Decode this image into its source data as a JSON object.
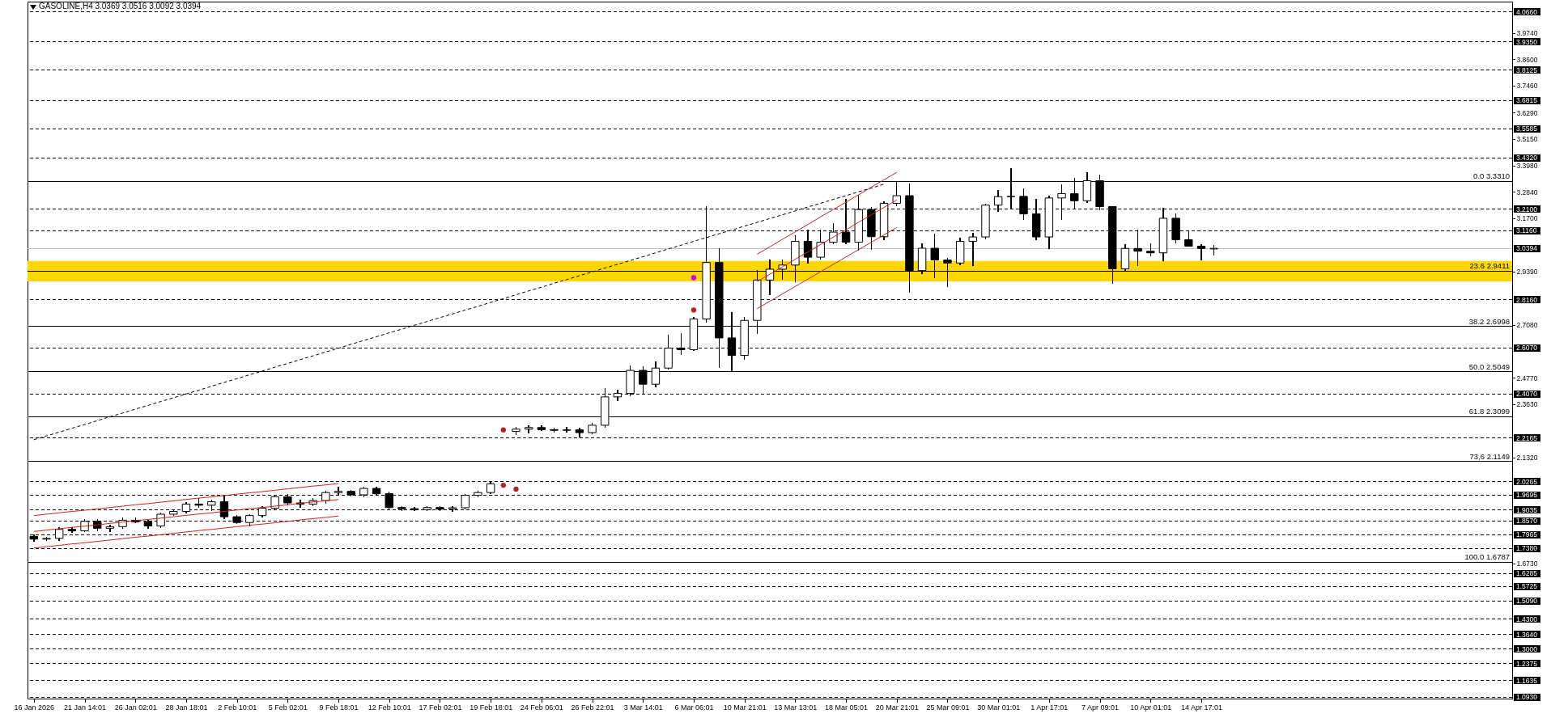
{
  "chart_data": {
    "type": "candlestick",
    "title": "GASOLINE,H4 3.0369 3.0516 3.0092 3.0394",
    "color": "#000000",
    "categories": [
      "16 Jan 2026",
      null,
      null,
      null,
      "21 Jan 14:01",
      null,
      null,
      null,
      "26 Jan 02:01",
      null,
      null,
      null,
      "28 Jan 18:01",
      null,
      null,
      null,
      "2 Feb 10:01",
      null,
      null,
      null,
      "5 Feb 02:01",
      null,
      null,
      null,
      "9 Feb 18:01",
      null,
      null,
      null,
      "12 Feb 10:01",
      null,
      null,
      null,
      "17 Feb 02:01",
      null,
      null,
      null,
      "19 Feb 18:01",
      null,
      null,
      null,
      "24 Feb 06:01",
      null,
      null,
      null,
      "26 Feb 22:01",
      null,
      null,
      null,
      "3 Mar 14:01",
      null,
      null,
      null,
      "6 Mar 06:01",
      null,
      null,
      null,
      "10 Mar 21:01",
      null,
      null,
      null,
      "13 Mar 13:01",
      null,
      null,
      null,
      "18 Mar 05:01",
      null,
      null,
      null,
      "20 Mar 21:01",
      null,
      null,
      null,
      "25 Mar 09:01",
      null,
      null,
      null,
      "30 Mar 01:01",
      null,
      null,
      null,
      "1 Apr 17:01",
      null,
      null,
      null,
      "7 Apr 09:01",
      null,
      null,
      null,
      "10 Apr 01:01",
      null,
      null,
      null,
      "14 Apr 17:01",
      null,
      null,
      null,
      null,
      null,
      null,
      null,
      null,
      null,
      null,
      null,
      null,
      null,
      null,
      null,
      null,
      null,
      null,
      null,
      null,
      null,
      null,
      null,
      null
    ],
    "ohlc": [
      [
        1.79,
        1.797,
        1.77,
        1.778
      ],
      [
        1.778,
        1.786,
        1.772,
        1.781
      ],
      [
        1.781,
        1.826,
        1.772,
        1.82
      ],
      [
        1.82,
        1.828,
        1.806,
        1.814
      ],
      [
        1.814,
        1.862,
        1.81,
        1.855
      ],
      [
        1.855,
        1.862,
        1.815,
        1.825
      ],
      [
        1.825,
        1.838,
        1.812,
        1.832
      ],
      [
        1.832,
        1.868,
        1.825,
        1.86
      ],
      [
        1.86,
        1.87,
        1.848,
        1.852
      ],
      [
        1.852,
        1.858,
        1.826,
        1.835
      ],
      [
        1.835,
        1.892,
        1.83,
        1.886
      ],
      [
        1.886,
        1.905,
        1.88,
        1.898
      ],
      [
        1.898,
        1.935,
        1.893,
        1.93
      ],
      [
        1.93,
        1.955,
        1.915,
        1.925
      ],
      [
        1.925,
        1.945,
        1.903,
        1.94
      ],
      [
        1.94,
        1.968,
        1.868,
        1.875
      ],
      [
        1.875,
        1.88,
        1.845,
        1.85
      ],
      [
        1.85,
        1.885,
        1.836,
        1.88
      ],
      [
        1.88,
        1.92,
        1.875,
        1.912
      ],
      [
        1.912,
        1.968,
        1.905,
        1.962
      ],
      [
        1.962,
        1.97,
        1.928,
        1.935
      ],
      [
        1.935,
        1.948,
        1.915,
        1.93
      ],
      [
        1.93,
        1.952,
        1.925,
        1.945
      ],
      [
        1.945,
        1.985,
        1.935,
        1.98
      ],
      [
        1.98,
        2.004,
        1.972,
        1.985
      ],
      [
        1.985,
        1.99,
        1.965,
        1.97
      ],
      [
        1.97,
        2.004,
        1.962,
        1.998
      ],
      [
        1.998,
        2.002,
        1.97,
        1.975
      ],
      [
        1.975,
        1.98,
        1.91,
        1.915
      ],
      [
        1.915,
        1.918,
        1.903,
        1.91
      ],
      [
        1.91,
        1.915,
        1.901,
        1.906
      ],
      [
        1.906,
        1.92,
        1.902,
        1.915
      ],
      [
        1.915,
        1.918,
        1.903,
        1.908
      ],
      [
        1.908,
        1.918,
        1.898,
        1.914
      ],
      [
        1.914,
        1.972,
        1.91,
        1.968
      ],
      [
        1.968,
        1.985,
        1.962,
        1.98
      ],
      [
        1.98,
        2.025,
        1.975,
        2.018
      ],
      null,
      [
        2.245,
        2.262,
        2.232,
        2.255
      ],
      [
        2.255,
        2.27,
        2.24,
        2.262
      ],
      [
        2.262,
        2.268,
        2.248,
        2.253
      ],
      [
        2.253,
        2.26,
        2.242,
        2.25
      ],
      [
        2.25,
        2.262,
        2.244,
        2.252
      ],
      [
        2.252,
        2.258,
        2.222,
        2.24
      ],
      [
        2.24,
        2.28,
        2.236,
        2.272
      ],
      [
        2.272,
        2.43,
        2.265,
        2.395
      ],
      [
        2.395,
        2.425,
        2.38,
        2.41
      ],
      [
        2.41,
        2.529,
        2.4,
        2.51
      ],
      [
        2.51,
        2.525,
        2.41,
        2.45
      ],
      [
        2.45,
        2.545,
        2.44,
        2.52
      ],
      [
        2.52,
        2.663,
        2.515,
        2.607
      ],
      [
        2.607,
        2.668,
        2.581,
        2.6
      ],
      [
        2.6,
        2.74,
        2.596,
        2.733
      ],
      [
        2.733,
        3.22,
        2.72,
        2.978
      ],
      [
        2.978,
        3.037,
        2.523,
        2.651
      ],
      [
        2.651,
        2.762,
        2.505,
        2.575
      ],
      [
        2.575,
        2.738,
        2.56,
        2.727
      ],
      [
        2.727,
        2.943,
        2.67,
        2.902
      ],
      [
        2.902,
        2.99,
        2.838,
        2.949
      ],
      [
        2.949,
        2.99,
        2.905,
        2.967
      ],
      [
        2.967,
        3.095,
        2.896,
        3.07
      ],
      [
        3.07,
        3.118,
        2.975,
        3.001
      ],
      [
        3.001,
        3.118,
        2.995,
        3.066
      ],
      [
        3.066,
        3.148,
        3.06,
        3.11
      ],
      [
        3.11,
        3.253,
        3.06,
        3.066
      ],
      [
        3.066,
        3.27,
        3.033,
        3.208
      ],
      [
        3.208,
        3.218,
        3.037,
        3.09
      ],
      [
        3.09,
        3.24,
        3.078,
        3.235
      ],
      [
        3.235,
        3.329,
        3.225,
        3.268
      ],
      [
        3.268,
        3.317,
        2.85,
        2.943
      ],
      [
        2.943,
        3.058,
        2.93,
        3.04
      ],
      [
        3.04,
        3.102,
        2.914,
        2.989
      ],
      [
        2.989,
        2.995,
        2.874,
        2.976
      ],
      [
        2.976,
        3.083,
        2.97,
        3.07
      ],
      [
        3.07,
        3.104,
        2.966,
        3.089
      ],
      [
        3.089,
        3.229,
        3.08,
        3.227
      ],
      [
        3.227,
        3.29,
        3.202,
        3.264
      ],
      [
        3.264,
        3.384,
        3.214,
        3.265
      ],
      [
        3.265,
        3.296,
        3.167,
        3.189
      ],
      [
        3.189,
        3.252,
        3.077,
        3.089
      ],
      [
        3.089,
        3.265,
        3.039,
        3.258
      ],
      [
        3.258,
        3.315,
        3.167,
        3.277
      ],
      [
        3.277,
        3.342,
        3.214,
        3.246
      ],
      [
        3.246,
        3.367,
        3.24,
        3.333
      ],
      [
        3.333,
        3.357,
        3.208,
        3.221
      ],
      [
        3.221,
        3.221,
        2.889,
        2.951
      ],
      [
        2.951,
        3.054,
        2.939,
        3.039
      ],
      [
        3.039,
        3.117,
        2.966,
        3.027
      ],
      [
        3.027,
        3.058,
        3.008,
        3.02
      ],
      [
        3.02,
        3.212,
        2.986,
        3.17
      ],
      [
        3.17,
        3.189,
        3.064,
        3.077
      ],
      [
        3.077,
        3.112,
        3.049,
        3.049
      ],
      [
        3.049,
        3.054,
        2.991,
        3.039
      ],
      [
        3.0369,
        3.0516,
        3.0092,
        3.0394
      ],
      null,
      null,
      null,
      null,
      null,
      null,
      null,
      null,
      null,
      null,
      null,
      null,
      null,
      null,
      null,
      null,
      null,
      null,
      null,
      null,
      null,
      null,
      null
    ],
    "ylim": [
      1.086,
      4.11
    ],
    "yticks": [
      {
        "value": 3.974,
        "label": "3.9740"
      },
      {
        "value": 3.86,
        "label": "3.8600"
      },
      {
        "value": 3.746,
        "label": "3.7460"
      },
      {
        "value": 3.629,
        "label": "3.6290"
      },
      {
        "value": 3.515,
        "label": "3.5150"
      },
      {
        "value": 3.398,
        "label": "3.3980"
      },
      {
        "value": 3.284,
        "label": "3.2840"
      },
      {
        "value": 3.17,
        "label": "3.1700"
      },
      {
        "value": 2.939,
        "label": "2.9390"
      },
      {
        "value": 2.708,
        "label": "2.7080"
      },
      {
        "value": 2.477,
        "label": "2.4770"
      },
      {
        "value": 2.363,
        "label": "2.3630"
      },
      {
        "value": 2.132,
        "label": "2.1320"
      },
      {
        "value": 1.673,
        "label": "1.6730"
      }
    ],
    "bands": [
      {
        "axis": "y",
        "from": 2.896,
        "to": 2.985,
        "color": "#ffd700"
      }
    ],
    "series": [
      {
        "type": "line",
        "color": "#cc2222",
        "line_style": "solid",
        "values": [
          1.88,
          1.886,
          1.892,
          1.898,
          1.903,
          1.909,
          1.915,
          1.921,
          1.927,
          1.932,
          1.938,
          1.944,
          1.95,
          1.956,
          1.961,
          1.967,
          1.973,
          1.979,
          1.984,
          1.99,
          1.996,
          2.002,
          2.008,
          2.013,
          2.019,
          null,
          null,
          null,
          null,
          null,
          null,
          null,
          null,
          null,
          null,
          null,
          null,
          null,
          null,
          null,
          null,
          null,
          null,
          null,
          null,
          null,
          null,
          null,
          null,
          null,
          null,
          null,
          null,
          null,
          null,
          null,
          null,
          null,
          null,
          null,
          null,
          null,
          null,
          null,
          null,
          null,
          null,
          null,
          null,
          null,
          null,
          null,
          null,
          null,
          null,
          null,
          null,
          null,
          null,
          null,
          null,
          null,
          null,
          null,
          null,
          null,
          null,
          null,
          null,
          null,
          null,
          null,
          null,
          null,
          null,
          null,
          null,
          null,
          null,
          null,
          null,
          null,
          null,
          null,
          null,
          null,
          null,
          null,
          null,
          null,
          null,
          null,
          null,
          null,
          null,
          null,
          null
        ]
      },
      {
        "type": "line",
        "color": "#cc2222",
        "line_style": "solid",
        "values": [
          1.811,
          1.817,
          1.823,
          1.829,
          1.834,
          1.84,
          1.846,
          1.852,
          1.858,
          1.863,
          1.869,
          1.875,
          1.881,
          1.887,
          1.892,
          1.898,
          1.904,
          1.91,
          1.915,
          1.921,
          1.927,
          1.933,
          1.939,
          1.944,
          1.95,
          null,
          null,
          null,
          null,
          null,
          null,
          null,
          null,
          null,
          null,
          null,
          null,
          null,
          null,
          null,
          null,
          null,
          null,
          null,
          null,
          null,
          null,
          null,
          null,
          null,
          null,
          null,
          null,
          null,
          null,
          null,
          null,
          null,
          null,
          null,
          null,
          null,
          null,
          null,
          null,
          null,
          null,
          null,
          null,
          null,
          null,
          null,
          null,
          null,
          null,
          null,
          null,
          null,
          null,
          null,
          null,
          null,
          null,
          null,
          null,
          null,
          null,
          null,
          null,
          null,
          null,
          null,
          null,
          null,
          null,
          null,
          null,
          null,
          null,
          null,
          null,
          null,
          null,
          null,
          null,
          null,
          null,
          null,
          null,
          null,
          null,
          null,
          null,
          null,
          null,
          null,
          null
        ]
      },
      {
        "type": "line",
        "color": "#cc2222",
        "line_style": "solid",
        "values": [
          1.739,
          1.745,
          1.751,
          1.757,
          1.762,
          1.768,
          1.774,
          1.78,
          1.786,
          1.791,
          1.797,
          1.803,
          1.809,
          1.815,
          1.82,
          1.826,
          1.832,
          1.838,
          1.843,
          1.849,
          1.855,
          1.861,
          1.867,
          1.872,
          1.878,
          null,
          null,
          null,
          null,
          null,
          null,
          null,
          null,
          null,
          null,
          null,
          null,
          null,
          null,
          null,
          null,
          null,
          null,
          null,
          null,
          null,
          null,
          null,
          null,
          null,
          null,
          null,
          null,
          null,
          null,
          null,
          null,
          null,
          null,
          null,
          null,
          null,
          null,
          null,
          null,
          null,
          null,
          null,
          null,
          null,
          null,
          null,
          null,
          null,
          null,
          null,
          null,
          null,
          null,
          null,
          null,
          null,
          null,
          null,
          null,
          null,
          null,
          null,
          null,
          null,
          null,
          null,
          null,
          null,
          null,
          null,
          null,
          null,
          null,
          null,
          null,
          null,
          null,
          null,
          null,
          null,
          null,
          null,
          null,
          null,
          null,
          null,
          null,
          null,
          null,
          null,
          null
        ]
      },
      {
        "type": "line",
        "color": "#cc2222",
        "line_style": "solid",
        "values": [
          null,
          null,
          null,
          null,
          null,
          null,
          null,
          null,
          null,
          null,
          null,
          null,
          null,
          null,
          null,
          null,
          null,
          null,
          null,
          null,
          null,
          null,
          null,
          null,
          null,
          null,
          null,
          null,
          null,
          null,
          null,
          null,
          null,
          null,
          null,
          null,
          null,
          null,
          null,
          null,
          null,
          null,
          null,
          null,
          null,
          null,
          null,
          null,
          null,
          null,
          null,
          null,
          null,
          null,
          null,
          null,
          null,
          3.014,
          3.046,
          3.079,
          3.111,
          3.143,
          3.176,
          3.208,
          3.24,
          3.272,
          3.305,
          3.337,
          3.369,
          null,
          null,
          null,
          null,
          null,
          null,
          null,
          null,
          null,
          null,
          null,
          null,
          null,
          null,
          null,
          null,
          null,
          null,
          null,
          null,
          null,
          null,
          null,
          null,
          null,
          null,
          null,
          null,
          null,
          null,
          null,
          null,
          null,
          null,
          null,
          null,
          null,
          null,
          null,
          null,
          null,
          null,
          null,
          null,
          null,
          null,
          null,
          null
        ]
      },
      {
        "type": "line",
        "color": "#cc2222",
        "line_style": "solid",
        "values": [
          null,
          null,
          null,
          null,
          null,
          null,
          null,
          null,
          null,
          null,
          null,
          null,
          null,
          null,
          null,
          null,
          null,
          null,
          null,
          null,
          null,
          null,
          null,
          null,
          null,
          null,
          null,
          null,
          null,
          null,
          null,
          null,
          null,
          null,
          null,
          null,
          null,
          null,
          null,
          null,
          null,
          null,
          null,
          null,
          null,
          null,
          null,
          null,
          null,
          null,
          null,
          null,
          null,
          null,
          null,
          null,
          null,
          2.895,
          2.927,
          2.959,
          2.992,
          3.024,
          3.056,
          3.088,
          3.12,
          3.153,
          3.185,
          3.217,
          3.249,
          null,
          null,
          null,
          null,
          null,
          null,
          null,
          null,
          null,
          null,
          null,
          null,
          null,
          null,
          null,
          null,
          null,
          null,
          null,
          null,
          null,
          null,
          null,
          null,
          null,
          null,
          null,
          null,
          null,
          null,
          null,
          null,
          null,
          null,
          null,
          null,
          null,
          null,
          null,
          null,
          null,
          null,
          null,
          null,
          null,
          null,
          null,
          null
        ]
      },
      {
        "type": "line",
        "color": "#cc2222",
        "line_style": "solid",
        "values": [
          null,
          null,
          null,
          null,
          null,
          null,
          null,
          null,
          null,
          null,
          null,
          null,
          null,
          null,
          null,
          null,
          null,
          null,
          null,
          null,
          null,
          null,
          null,
          null,
          null,
          null,
          null,
          null,
          null,
          null,
          null,
          null,
          null,
          null,
          null,
          null,
          null,
          null,
          null,
          null,
          null,
          null,
          null,
          null,
          null,
          null,
          null,
          null,
          null,
          null,
          null,
          null,
          null,
          null,
          null,
          null,
          null,
          2.778,
          2.81,
          2.842,
          2.874,
          2.906,
          2.938,
          2.97,
          3.002,
          3.034,
          3.066,
          3.098,
          3.13,
          null,
          null,
          null,
          null,
          null,
          null,
          null,
          null,
          null,
          null,
          null,
          null,
          null,
          null,
          null,
          null,
          null,
          null,
          null,
          null,
          null,
          null,
          null,
          null,
          null,
          null,
          null,
          null,
          null,
          null,
          null,
          null,
          null,
          null,
          null,
          null,
          null,
          null,
          null,
          null,
          null,
          null,
          null,
          null,
          null,
          null,
          null,
          null
        ]
      },
      {
        "type": "line",
        "color": "#000000",
        "line_style": "dashed",
        "values": [
          2.209,
          2.226,
          2.242,
          2.259,
          2.275,
          2.292,
          2.309,
          2.325,
          2.342,
          2.358,
          2.375,
          2.391,
          2.408,
          2.424,
          2.441,
          2.458,
          2.474,
          2.491,
          2.507,
          2.524,
          2.54,
          2.557,
          2.573,
          2.59,
          2.606,
          2.623,
          2.64,
          2.656,
          2.673,
          2.689,
          2.706,
          2.722,
          2.739,
          2.755,
          2.772,
          2.788,
          2.805,
          2.821,
          2.838,
          2.855,
          2.871,
          2.888,
          2.904,
          2.921,
          2.937,
          2.954,
          2.97,
          2.987,
          3.003,
          3.02,
          3.037,
          3.053,
          3.07,
          3.086,
          3.103,
          3.119,
          3.136,
          3.152,
          3.169,
          3.185,
          3.202,
          3.219,
          3.235,
          3.252,
          3.268,
          3.285,
          3.301,
          3.318,
          null,
          null,
          null,
          null,
          null,
          null,
          null,
          null,
          null,
          null,
          null,
          null,
          null,
          null,
          null,
          null,
          null,
          null,
          null,
          null,
          null,
          null,
          null,
          null,
          null,
          null,
          null,
          null,
          null,
          null,
          null,
          null,
          null,
          null,
          null,
          null,
          null,
          null,
          null,
          null,
          null,
          null,
          null,
          null,
          null,
          null,
          null,
          null,
          null
        ]
      },
      {
        "type": "scatter",
        "color": "#b22222",
        "marker": "circle",
        "values": [
          null,
          null,
          null,
          null,
          null,
          null,
          null,
          null,
          null,
          null,
          null,
          null,
          null,
          null,
          null,
          null,
          null,
          null,
          null,
          null,
          null,
          null,
          null,
          null,
          null,
          null,
          null,
          null,
          null,
          null,
          null,
          null,
          null,
          null,
          null,
          null,
          null,
          2.012,
          1.995,
          null,
          null,
          null,
          null,
          null,
          null,
          null,
          null,
          null,
          null,
          null,
          null,
          null,
          2.772,
          null,
          null,
          null,
          null,
          null,
          null,
          null,
          null,
          null,
          null,
          null,
          null,
          null,
          null,
          null,
          null,
          null,
          null,
          null,
          null,
          null,
          null,
          null,
          null,
          null,
          null,
          null,
          null,
          null,
          null,
          null,
          null,
          null,
          null,
          null,
          null,
          null,
          null,
          null,
          null,
          null,
          null,
          null,
          null,
          null,
          null,
          null,
          null,
          null,
          null,
          null,
          null,
          null,
          null,
          null,
          null,
          null,
          null,
          null,
          null,
          null,
          null,
          null,
          null
        ]
      },
      {
        "type": "scatter",
        "color": "#b22222",
        "marker": "circle",
        "values": [
          null,
          null,
          null,
          null,
          null,
          null,
          null,
          null,
          null,
          null,
          null,
          null,
          null,
          null,
          null,
          null,
          null,
          null,
          null,
          null,
          null,
          null,
          null,
          null,
          null,
          null,
          null,
          null,
          null,
          null,
          null,
          null,
          null,
          null,
          null,
          null,
          null,
          2.252,
          null,
          null,
          null,
          null,
          null,
          null,
          null,
          null,
          null,
          null,
          null,
          null,
          null,
          null,
          null,
          null,
          null,
          null,
          null,
          null,
          null,
          null,
          null,
          null,
          null,
          null,
          null,
          null,
          null,
          null,
          null,
          null,
          null,
          null,
          null,
          null,
          null,
          null,
          null,
          null,
          null,
          null,
          null,
          null,
          null,
          null,
          null,
          null,
          null,
          null,
          null,
          null,
          null,
          null,
          null,
          null,
          null,
          null,
          null,
          null,
          null,
          null,
          null,
          null,
          null,
          null,
          null,
          null,
          null,
          null,
          null,
          null,
          null,
          null,
          null,
          null,
          null,
          null,
          null
        ]
      },
      {
        "type": "scatter",
        "color": "#cc00ff",
        "marker": "circle",
        "values": [
          null,
          null,
          null,
          null,
          null,
          null,
          null,
          null,
          null,
          null,
          null,
          null,
          null,
          null,
          null,
          null,
          null,
          null,
          null,
          null,
          null,
          null,
          null,
          null,
          null,
          null,
          null,
          null,
          null,
          null,
          null,
          null,
          null,
          null,
          null,
          null,
          null,
          null,
          null,
          null,
          null,
          null,
          null,
          null,
          null,
          null,
          null,
          null,
          null,
          null,
          null,
          null,
          2.912,
          null,
          null,
          null,
          null,
          null,
          null,
          null,
          null,
          null,
          null,
          null,
          null,
          null,
          null,
          null,
          null,
          null,
          null,
          null,
          null,
          null,
          null,
          null,
          null,
          null,
          null,
          null,
          null,
          null,
          null,
          null,
          null,
          null,
          null,
          null,
          null,
          null,
          null,
          null,
          null,
          null,
          null,
          null,
          null,
          null,
          null,
          null,
          null,
          null,
          null,
          null,
          null,
          null,
          null,
          null,
          null,
          null,
          null,
          null,
          null,
          null,
          null,
          null,
          null
        ]
      }
    ],
    "ref_lines": [
      {
        "axis": "y",
        "value": 4.066,
        "label": "4.0660",
        "line_style": "dashed",
        "color": "#000000"
      },
      {
        "axis": "y",
        "value": 3.935,
        "label": "3.9350",
        "line_style": "dashed",
        "color": "#000000"
      },
      {
        "axis": "y",
        "value": 3.8125,
        "label": "3.8125",
        "line_style": "dashed",
        "color": "#000000"
      },
      {
        "axis": "y",
        "value": 3.6815,
        "label": "3.6815",
        "line_style": "dashed",
        "color": "#000000"
      },
      {
        "axis": "y",
        "value": 3.5585,
        "label": "3.5585",
        "line_style": "dashed",
        "color": "#000000"
      },
      {
        "axis": "y",
        "value": 3.432,
        "label": "3.4320",
        "line_style": "dashed",
        "color": "#000000"
      },
      {
        "axis": "y",
        "value": 3.331,
        "label": "0.0 3.3310",
        "line_style": "solid",
        "color": "#000000"
      },
      {
        "axis": "y",
        "value": 3.21,
        "label": "3.2100",
        "line_style": "dashed",
        "color": "#000000"
      },
      {
        "axis": "y",
        "value": 3.116,
        "label": "3.1160",
        "line_style": "dashed",
        "color": "#000000"
      },
      {
        "axis": "y",
        "value": 3.0394,
        "label": "3.0394",
        "line_style": "solid",
        "color": "#c0c0c0"
      },
      {
        "axis": "y",
        "value": 2.9411,
        "label": "23.6 2.9411",
        "line_style": "solid",
        "color": "#000000"
      },
      {
        "axis": "y",
        "value": 2.816,
        "label": "2.8160",
        "line_style": "dashed",
        "color": "#000000"
      },
      {
        "axis": "y",
        "value": 2.6998,
        "label": "38.2 2.6998",
        "line_style": "solid",
        "color": "#000000"
      },
      {
        "axis": "y",
        "value": 2.607,
        "label": "2.6070",
        "line_style": "dashed",
        "color": "#000000"
      },
      {
        "axis": "y",
        "value": 2.5049,
        "label": "50.0 2.5049",
        "line_style": "solid",
        "color": "#000000"
      },
      {
        "axis": "y",
        "value": 2.407,
        "label": "2.4070",
        "line_style": "dashed",
        "color": "#000000"
      },
      {
        "axis": "y",
        "value": 2.3099,
        "label": "61.8 2.3099",
        "line_style": "solid",
        "color": "#000000"
      },
      {
        "axis": "y",
        "value": 2.2165,
        "label": "2.2165",
        "line_style": "dashed",
        "color": "#000000"
      },
      {
        "axis": "y",
        "value": 2.1149,
        "label": "73,6 2.1149",
        "line_style": "solid",
        "color": "#000000"
      },
      {
        "axis": "y",
        "value": 2.0265,
        "label": "2.0265",
        "line_style": "dashed",
        "color": "#000000"
      },
      {
        "axis": "y",
        "value": 1.9695,
        "label": "1.9695",
        "line_style": "dashed",
        "color": "#000000"
      },
      {
        "axis": "y",
        "value": 1.9035,
        "label": "1.9035",
        "line_style": "dashed",
        "color": "#000000"
      },
      {
        "axis": "y",
        "value": 1.857,
        "label": "1.8570",
        "line_style": "dashed",
        "color": "#000000"
      },
      {
        "axis": "y",
        "value": 1.7965,
        "label": "1.7965",
        "line_style": "dashed",
        "color": "#000000"
      },
      {
        "axis": "y",
        "value": 1.738,
        "label": "1.7380",
        "line_style": "dashed",
        "color": "#000000"
      },
      {
        "axis": "y",
        "value": 1.6787,
        "label": "100.0 1.6787",
        "line_style": "solid",
        "color": "#000000"
      },
      {
        "axis": "y",
        "value": 1.6285,
        "label": "1.6285",
        "line_style": "dashed",
        "color": "#000000"
      },
      {
        "axis": "y",
        "value": 1.5725,
        "label": "1.5725",
        "line_style": "dashed",
        "color": "#000000"
      },
      {
        "axis": "y",
        "value": 1.509,
        "label": "1.5090",
        "line_style": "dashed",
        "color": "#000000"
      },
      {
        "axis": "y",
        "value": 1.43,
        "label": "1.4300",
        "line_style": "dashed",
        "color": "#000000"
      },
      {
        "axis": "y",
        "value": 1.364,
        "label": "1.3640",
        "line_style": "dashed",
        "color": "#000000"
      },
      {
        "axis": "y",
        "value": 1.3,
        "label": "1.3000",
        "line_style": "dashed",
        "color": "#000000"
      },
      {
        "axis": "y",
        "value": 1.2375,
        "label": "1.2375",
        "line_style": "dashed",
        "color": "#000000"
      },
      {
        "axis": "y",
        "value": 1.1635,
        "label": "1.1635",
        "line_style": "dashed",
        "color": "#000000"
      },
      {
        "axis": "y",
        "value": 1.093,
        "label": "1.0930",
        "line_style": "dashed",
        "color": "#000000"
      }
    ]
  }
}
